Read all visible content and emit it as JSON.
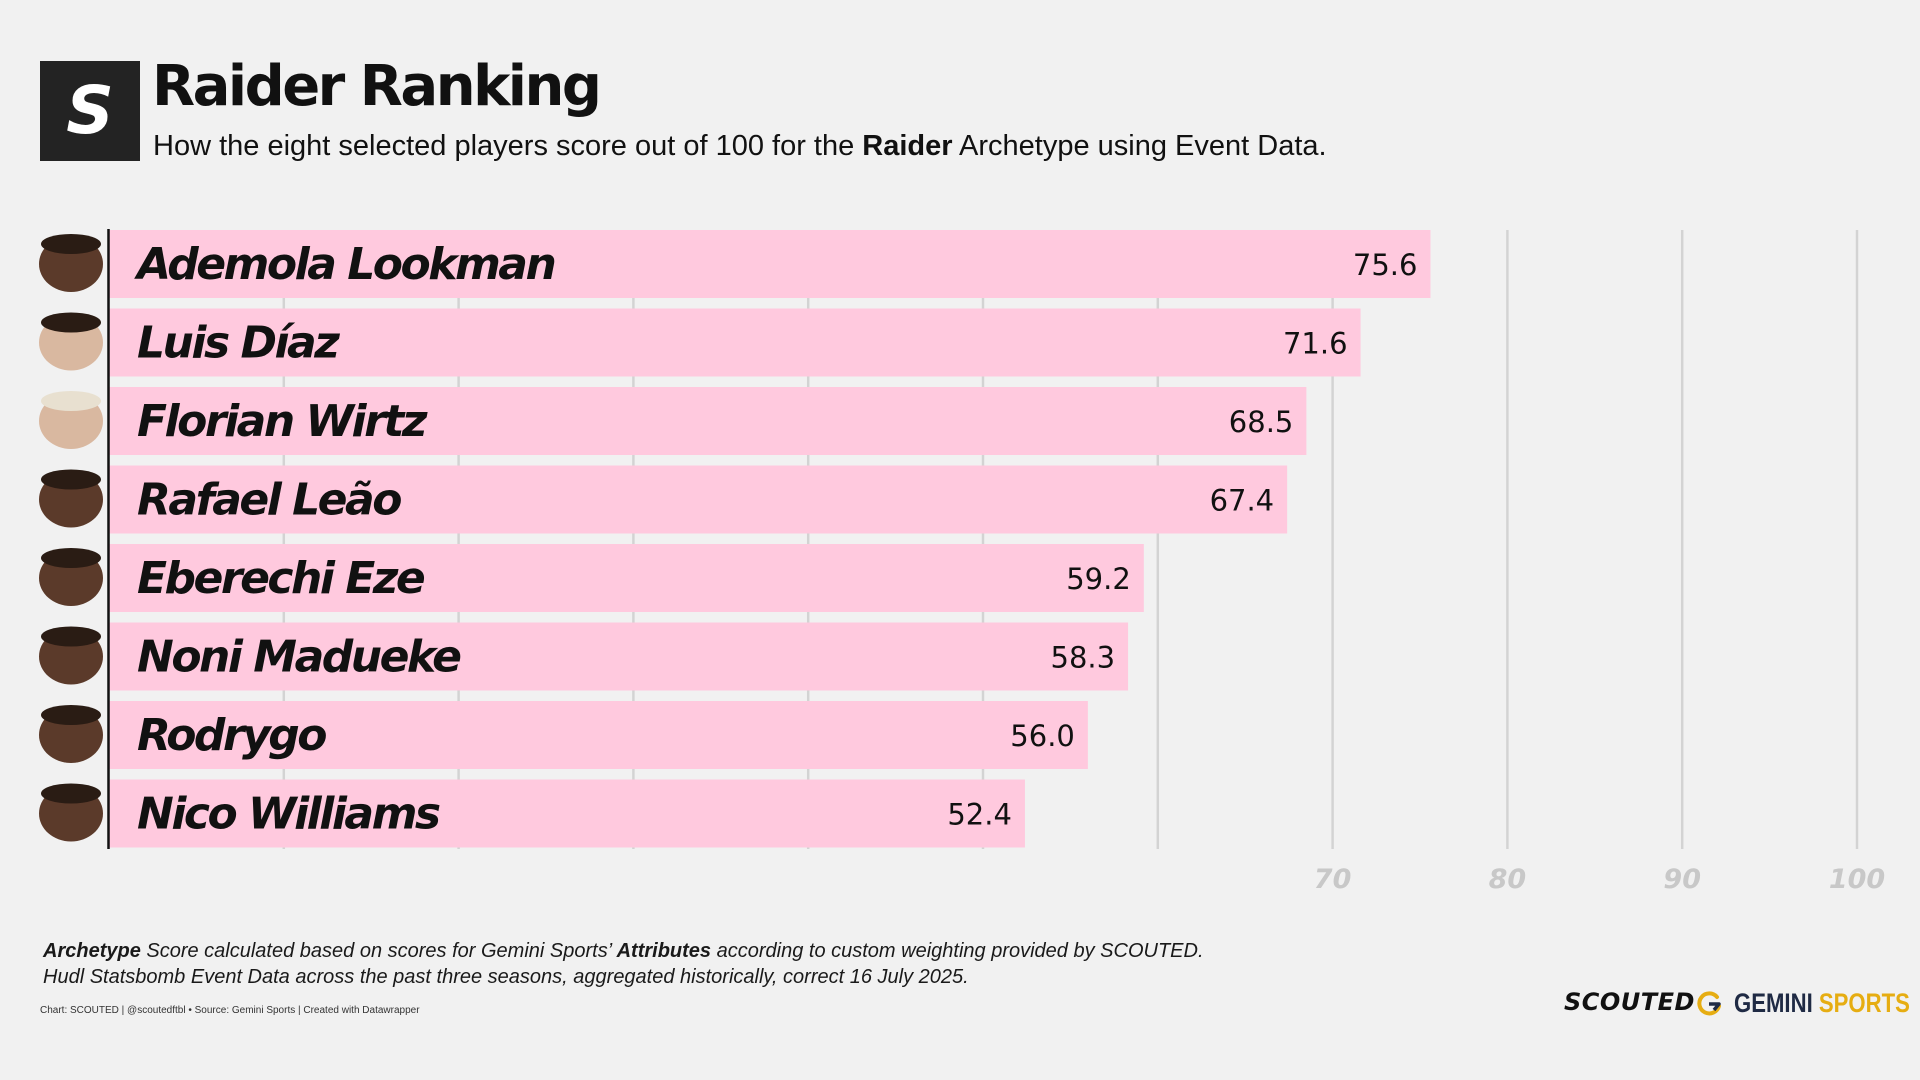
{
  "header": {
    "logo_letter": "S",
    "title": "Raider Ranking",
    "subtitle_before": "How the eight selected players score out of 100 for the ",
    "subtitle_bold": "Raider",
    "subtitle_after": " Archetype using Event Data."
  },
  "chart_data": {
    "type": "bar",
    "orientation": "horizontal",
    "title": "Raider Ranking",
    "categories": [
      "Ademola Lookman",
      "Luis Díaz",
      "Florian Wirtz",
      "Rafael Leão",
      "Eberechi Eze",
      "Noni Madueke",
      "Rodrygo",
      "Nico Williams"
    ],
    "values": [
      75.6,
      71.6,
      68.5,
      67.4,
      59.2,
      58.3,
      56.0,
      52.4
    ],
    "value_labels": [
      "75.6",
      "71.6",
      "68.5",
      "67.4",
      "59.2",
      "58.3",
      "56.0",
      "52.4"
    ],
    "xlim": [
      0,
      100
    ],
    "gridlines": [
      10,
      20,
      30,
      40,
      50,
      60,
      70,
      80,
      90,
      100
    ],
    "tick_labels": [
      "70",
      "80",
      "90",
      "100"
    ],
    "tick_label_values": [
      70,
      80,
      90,
      100
    ],
    "bar_color": "#ffc9de",
    "grid_color": "#d3d3d3",
    "tick_color": "#c8c8c8"
  },
  "footer": {
    "notes_line1_bold1": "Archetype",
    "notes_line1_text1": " Score calculated based on scores for Gemini Sports’ ",
    "notes_line1_bold2": "Attributes",
    "notes_line1_text2": " according to custom weighting provided by SCOUTED.",
    "notes_line2": "Hudl Statsbomb Event Data across the past three seasons, aggregated historically, correct 16 July 2025.",
    "credit": "Chart: SCOUTED | @scoutedftbl • Source: Gemini Sports | Created with Datawrapper",
    "brand_scouted": "SCOUTED",
    "brand_gemini_1": "GEMINI",
    "brand_gemini_2": "SPORTS"
  },
  "colors": {
    "background": "#f1f1f1",
    "bar": "#ffc9de",
    "axis": "#111111",
    "gemini_navy": "#1f2a44",
    "gemini_gold": "#e6ad12"
  }
}
